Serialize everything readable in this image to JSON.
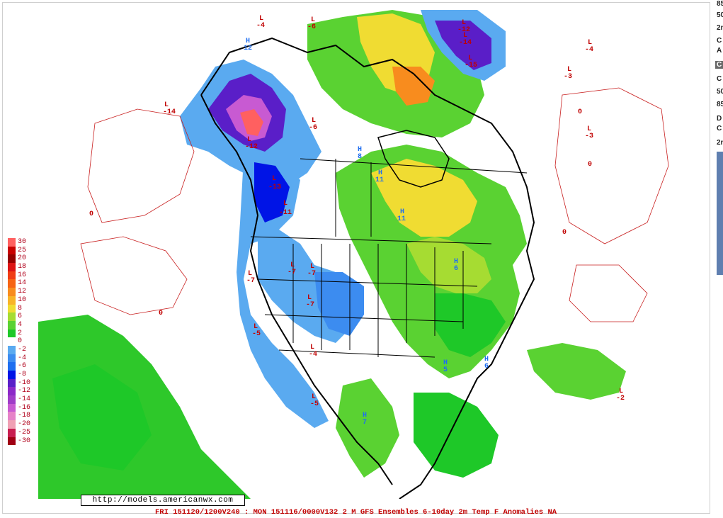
{
  "map": {
    "url": "http://models.americanwx.com",
    "caption": "FRI 151120/1200V240 : MON 151116/0000V132  2 M GFS Ensembles 6-10day 2m Temp F Anomalies NA",
    "scale_labels": [
      "30",
      "25",
      "20",
      "18",
      "16",
      "14",
      "12",
      "10",
      "8",
      "6",
      "4",
      "2",
      "0",
      "-2",
      "-4",
      "-6",
      "-8",
      "-10",
      "-12",
      "-14",
      "-16",
      "-18",
      "-20",
      "-25",
      "-30"
    ],
    "scale_colors": [
      "#ff6060",
      "#c80000",
      "#960000",
      "#dc1414",
      "#f03c14",
      "#f66414",
      "#f88c1e",
      "#f8b428",
      "#f0dc32",
      "#a6dc32",
      "#5ad232",
      "#1ec828",
      "#ffffff",
      "#5aaaf0",
      "#3c8cf0",
      "#1e6ef0",
      "#0014e6",
      "#5a1ec8",
      "#8c28c8",
      "#a03cc8",
      "#c85ad2",
      "#e682c8",
      "#f0a0b4",
      "#c81e50",
      "#a00014"
    ],
    "pressure_labels": [
      {
        "letter": "L",
        "value": "-4"
      },
      {
        "letter": "L",
        "value": "-6"
      },
      {
        "letter": "L",
        "value": "-12"
      },
      {
        "letter": "L",
        "value": "-14"
      },
      {
        "letter": "L",
        "value": "-15"
      },
      {
        "letter": "L",
        "value": "-4"
      },
      {
        "letter": "L",
        "value": "-3"
      },
      {
        "letter": "L",
        "value": "-3"
      },
      {
        "letter": "L",
        "value": "-14"
      },
      {
        "letter": "L",
        "value": "-13"
      },
      {
        "letter": "L",
        "value": "-12"
      },
      {
        "letter": "L",
        "value": "-11"
      },
      {
        "letter": "L",
        "value": "-7"
      },
      {
        "letter": "L",
        "value": "-7"
      },
      {
        "letter": "L",
        "value": "-7"
      },
      {
        "letter": "L",
        "value": "-7"
      },
      {
        "letter": "L",
        "value": "-5"
      },
      {
        "letter": "L",
        "value": "-4"
      },
      {
        "letter": "L",
        "value": "-5"
      },
      {
        "letter": "L",
        "value": "-6"
      },
      {
        "letter": "L",
        "value": "-2"
      },
      {
        "letter": "H",
        "value": "12"
      },
      {
        "letter": "H",
        "value": "11"
      },
      {
        "letter": "H",
        "value": "11"
      },
      {
        "letter": "H",
        "value": "8"
      },
      {
        "letter": "H",
        "value": "7"
      },
      {
        "letter": "H",
        "value": "6"
      },
      {
        "letter": "H",
        "value": "6"
      },
      {
        "letter": "H",
        "value": "5"
      }
    ],
    "contour_zero_label": "0"
  },
  "side_panel": {
    "items": [
      "85",
      "50",
      "2n",
      "C",
      "A",
      "C",
      "C",
      "50",
      "85",
      "D",
      "C",
      "2n"
    ],
    "selected_index": 5
  }
}
